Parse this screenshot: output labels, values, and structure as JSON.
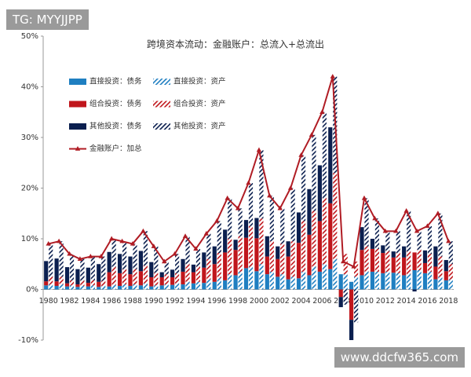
{
  "chart_data": {
    "type": "bar",
    "title": "跨境资本流动：金融账户：总流入+总流出",
    "categories": [
      "1980",
      null,
      "1982",
      null,
      "1984",
      null,
      "1986",
      null,
      "1988",
      null,
      "1990",
      null,
      "1992",
      null,
      "1994",
      null,
      "1996",
      null,
      "1998",
      null,
      "2000",
      null,
      "2002",
      null,
      "2004",
      null,
      "2006",
      null,
      "2008",
      null,
      "2010",
      null,
      "2012",
      null,
      "2014",
      null,
      "2016",
      null,
      "2018"
    ],
    "ylim": [
      -10,
      50
    ],
    "yticks": [
      {
        "value": -10,
        "label": "-10%"
      },
      {
        "value": 0,
        "label": "0%"
      },
      {
        "value": 10,
        "label": "10%"
      },
      {
        "value": 20,
        "label": "20%"
      },
      {
        "value": 30,
        "label": "30%"
      },
      {
        "value": 40,
        "label": "40%"
      },
      {
        "value": 50,
        "label": "50%"
      }
    ],
    "legend": "upper-left",
    "series": [
      {
        "name": "直接投资：债务",
        "type": "bar",
        "pattern": "solid",
        "color": "#1f7fc1",
        "values": [
          0.8,
          0.7,
          0.6,
          0.5,
          0.6,
          0.5,
          0.6,
          0.7,
          0.7,
          0.8,
          0.6,
          0.8,
          0.9,
          1,
          1.2,
          1.3,
          1.5,
          1.8,
          2.8,
          4.2,
          3.6,
          3,
          2.5,
          2,
          2.2,
          2.8,
          3.5,
          4,
          3,
          1.5,
          2.8,
          3.5,
          3.2,
          3.3,
          2.8,
          3.8,
          3.2,
          2,
          1.8
        ]
      },
      {
        "name": "直接投资：资产",
        "type": "bar",
        "pattern": "hatched",
        "color": "#1f7fc1",
        "values": [
          1,
          1,
          0.8,
          0.7,
          0.8,
          0.7,
          0.9,
          1,
          1,
          1.2,
          0.8,
          1,
          1.2,
          1.5,
          1.5,
          2,
          2.2,
          3,
          3.5,
          4.5,
          5,
          3.5,
          3,
          2.5,
          3.5,
          4.5,
          5,
          6,
          3,
          2.5,
          3.5,
          3.5,
          3.5,
          3.2,
          3,
          3.8,
          3.5,
          2.5,
          2
        ]
      },
      {
        "name": "组合投资：债务",
        "type": "bar",
        "pattern": "solid",
        "color": "#c0161c",
        "values": [
          0.8,
          0.9,
          0.6,
          0.5,
          0.7,
          1,
          2.8,
          2.5,
          2.3,
          2.8,
          1.8,
          1.6,
          1.5,
          2.5,
          2.2,
          3,
          3.5,
          5.5,
          5,
          6,
          6.5,
          3.5,
          3.5,
          4.5,
          7,
          8,
          10,
          13,
          -1.5,
          -6,
          5,
          4.5,
          4,
          3,
          3.5,
          3.5,
          2,
          2.5,
          1.8
        ]
      },
      {
        "name": "组合投资：资产",
        "type": "bar",
        "pattern": "hatched",
        "color": "#c0161c",
        "values": [
          1.5,
          1.5,
          1,
          1,
          1,
          1,
          3.5,
          3,
          3,
          3.5,
          2.5,
          2,
          2,
          3.5,
          3,
          4,
          5,
          7,
          7,
          8,
          9,
          6,
          6,
          7,
          10,
          11,
          13,
          17,
          4,
          3,
          5,
          4.5,
          4,
          4,
          4.5,
          4,
          3.5,
          4,
          3
        ]
      },
      {
        "name": "其他投资：债务",
        "type": "bar",
        "pattern": "solid",
        "color": "#0b1f4f",
        "values": [
          4,
          4.5,
          3.2,
          3,
          3,
          3.5,
          4,
          3.8,
          3.5,
          4,
          3,
          1,
          1.5,
          2.5,
          1.5,
          3,
          3.5,
          4.5,
          2,
          3.5,
          4,
          4,
          2.5,
          3,
          6,
          9,
          11,
          15,
          -2,
          -4,
          4.5,
          2,
          1.5,
          1.2,
          2.2,
          -0.4,
          2.5,
          4,
          2.2
        ]
      },
      {
        "name": "其他投资：资产",
        "type": "bar",
        "pattern": "hatched",
        "color": "#0b1f4f",
        "values": [
          6.5,
          7,
          5.2,
          4.3,
          4.7,
          4.8,
          5.6,
          5.5,
          5,
          6.8,
          5.2,
          2.5,
          3.8,
          5.5,
          3.5,
          5,
          6.3,
          8,
          5.5,
          8.5,
          13.5,
          9,
          7,
          10.5,
          13,
          15,
          17,
          19,
          -3,
          -6.5,
          9.5,
          6,
          4,
          4.3,
          8,
          3.7,
          5.5,
          8.5,
          4.5
        ]
      },
      {
        "name": "金融账户：加总",
        "type": "line",
        "color": "#b01c24",
        "values": [
          9,
          9.5,
          7,
          6,
          6.5,
          6.5,
          10,
          9.5,
          9,
          11.5,
          8.5,
          5.5,
          7,
          10.5,
          8,
          11,
          13.5,
          18,
          16,
          21,
          27.5,
          18.5,
          16,
          20,
          26.5,
          30.5,
          35,
          42,
          5.5,
          4.5,
          18,
          14,
          11.5,
          11.5,
          15.5,
          11.5,
          12.5,
          15,
          9.5
        ]
      }
    ]
  },
  "watermarks": [
    "TG: MYYJJPP",
    "www.ddcfw365.com"
  ]
}
